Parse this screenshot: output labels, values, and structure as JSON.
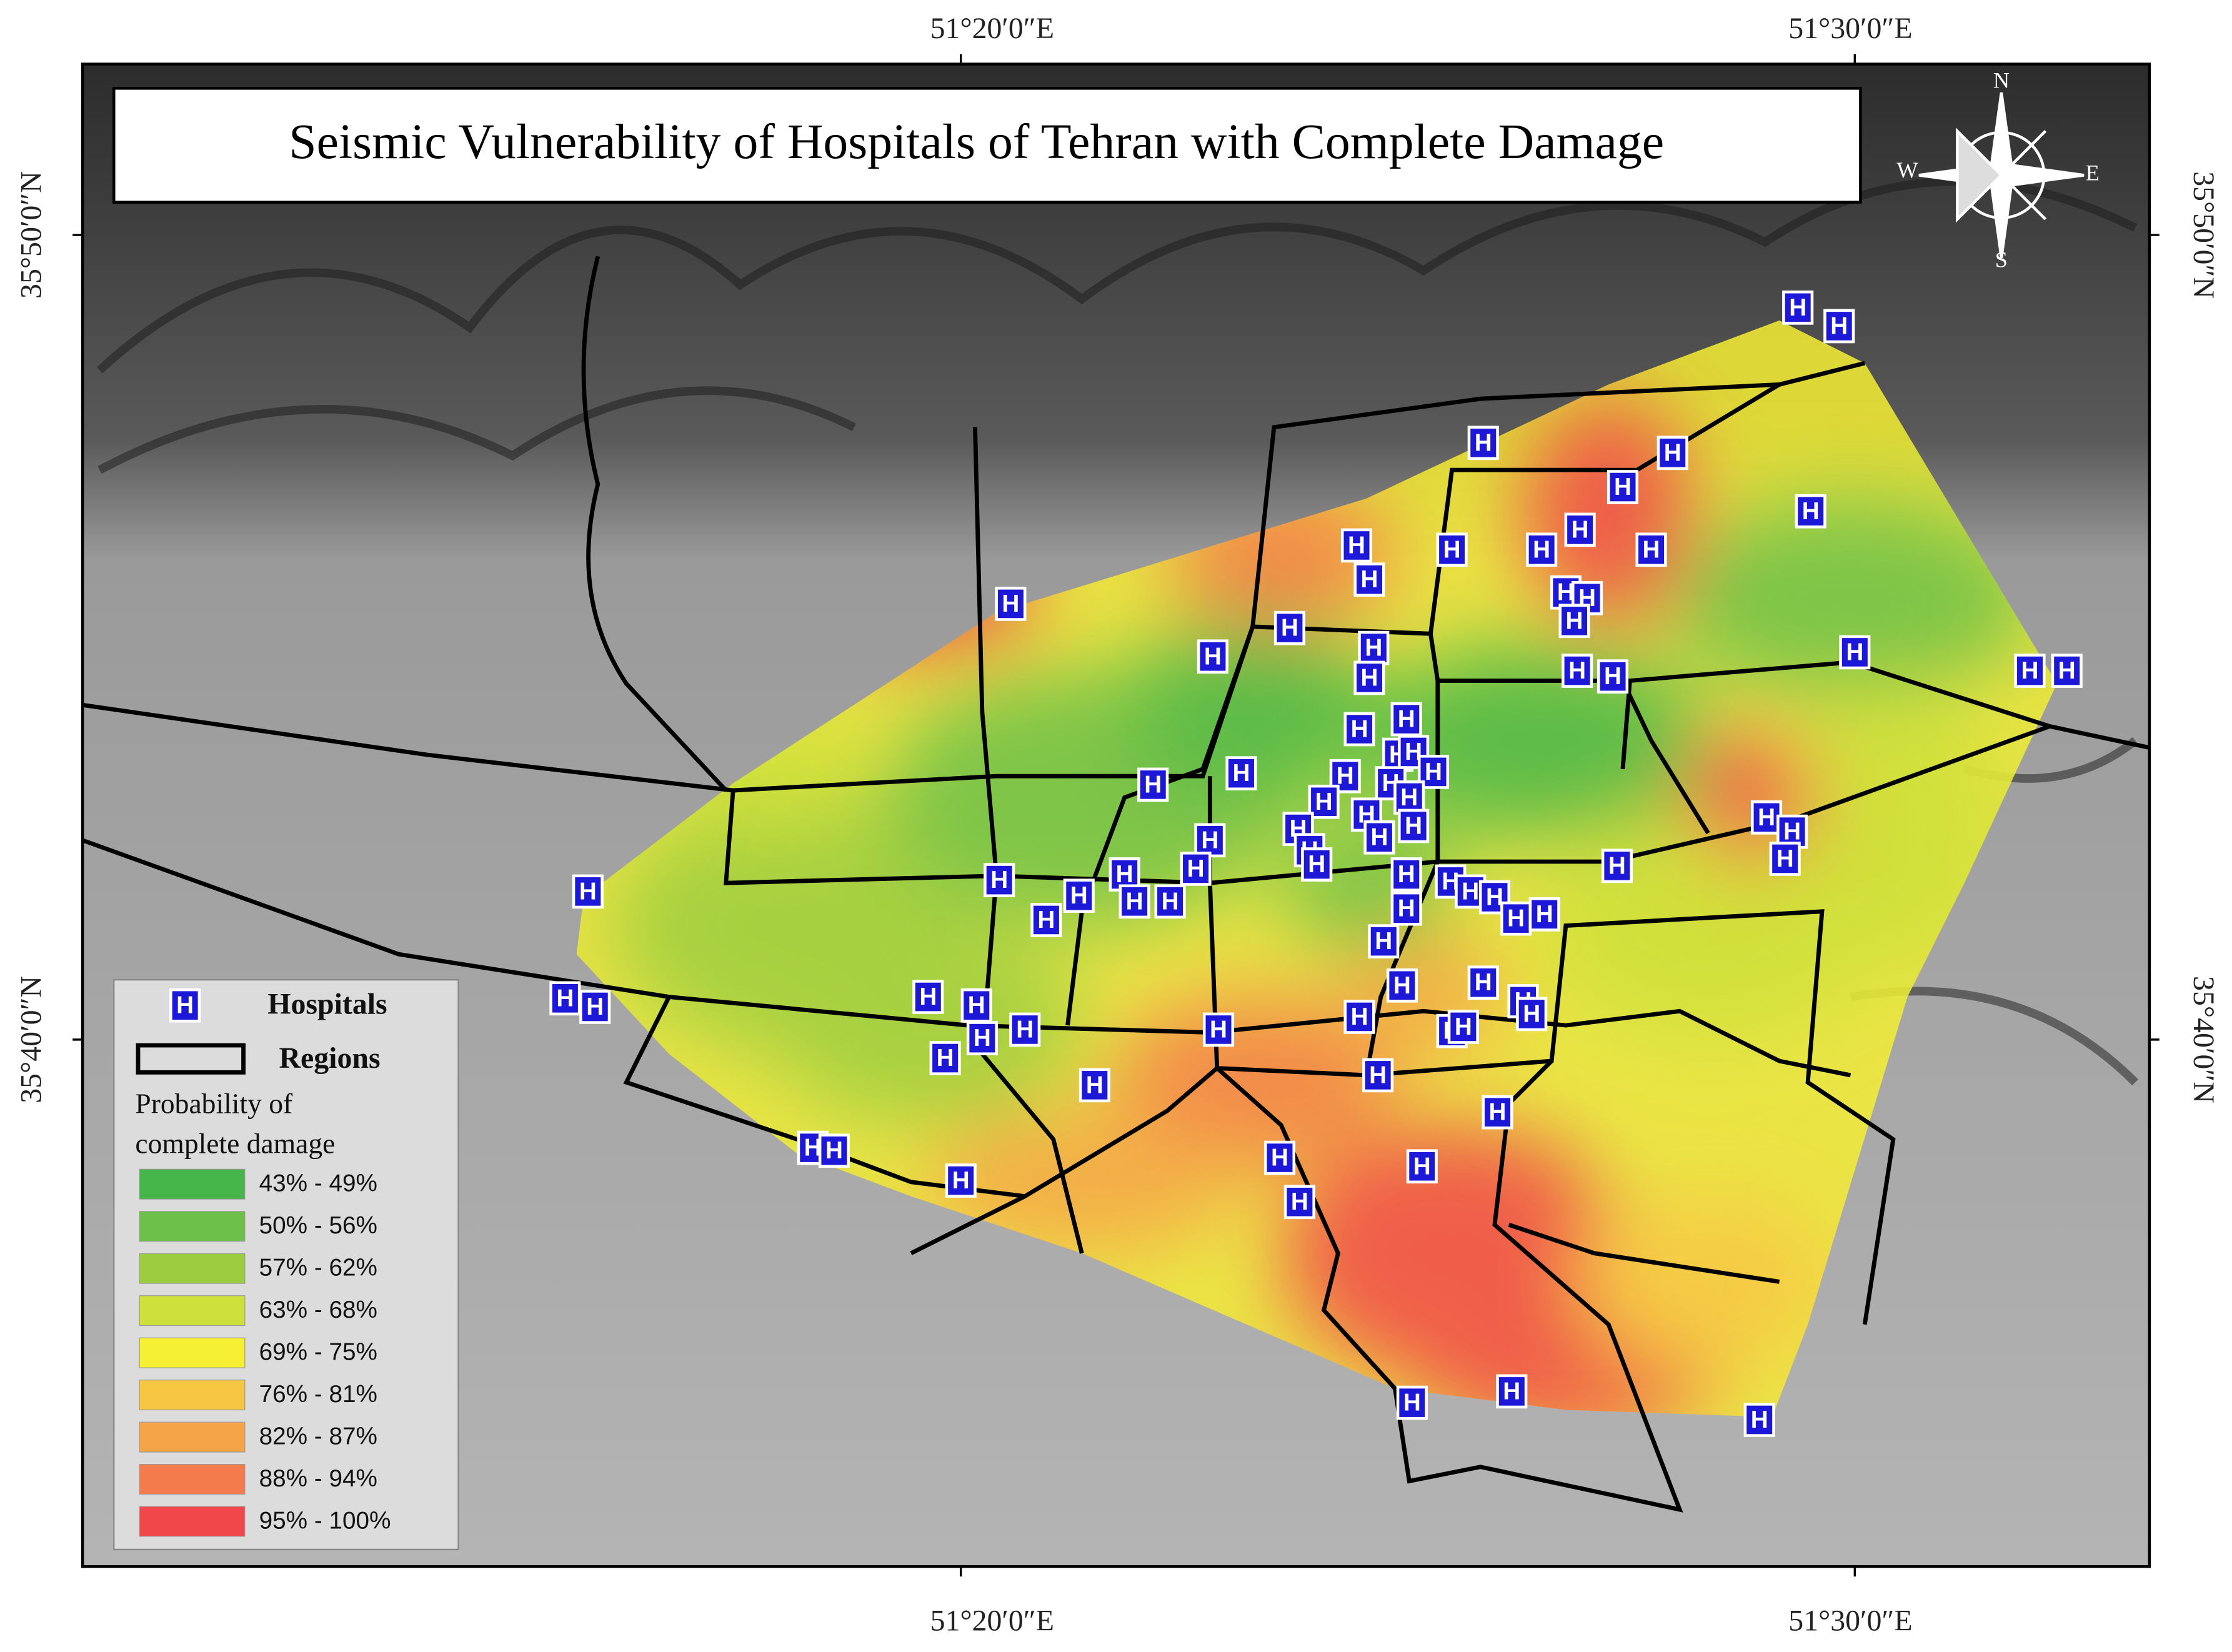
{
  "title": "Seismic Vulnerability of Hospitals of Tehran with Complete Damage",
  "coordinates": {
    "top": [
      "51°20′0″E",
      "51°30′0″E"
    ],
    "bottom": [
      "51°20′0″E",
      "51°30′0″E"
    ],
    "left": [
      "35°50′0″N",
      "35°40′0″N"
    ],
    "right": [
      "35°50′0″N",
      "35°40′0″N"
    ]
  },
  "compass": {
    "north": "N",
    "south": "S",
    "east": "E",
    "west": "W"
  },
  "legend": {
    "hospital_symbol": "H",
    "hospitals": "Hospitals",
    "regions": "Regions",
    "probability_title": [
      "Probability of",
      "complete damage"
    ],
    "classes": [
      {
        "label": "43% - 49%",
        "color": "#46b64a"
      },
      {
        "label": "50% - 56%",
        "color": "#6dc04a"
      },
      {
        "label": "57% - 62%",
        "color": "#9ccd41"
      },
      {
        "label": "63% - 68%",
        "color": "#cde03b"
      },
      {
        "label": "69% - 75%",
        "color": "#f6f034"
      },
      {
        "label": "76% - 81%",
        "color": "#f7c744"
      },
      {
        "label": "82% - 87%",
        "color": "#f5a448"
      },
      {
        "label": "88% - 94%",
        "color": "#f47b4b"
      },
      {
        "label": "95% - 100%",
        "color": "#f1474b"
      }
    ]
  }
}
